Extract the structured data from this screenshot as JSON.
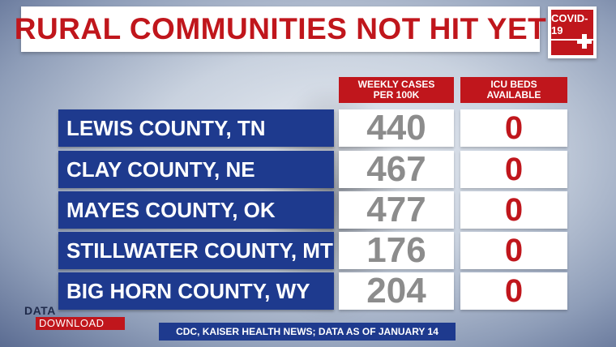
{
  "title": "RURAL COMMUNITIES NOT HIT YET",
  "badge": {
    "label": "COVID-19",
    "icon": "plus-icon"
  },
  "columns": {
    "cases_line1": "WEEKLY CASES",
    "cases_line2": "PER 100K",
    "icu_line1": "ICU BEDS",
    "icu_line2": "AVAILABLE"
  },
  "rows": [
    {
      "county": "LEWIS COUNTY, TN",
      "cases": "440",
      "icu": "0"
    },
    {
      "county": "CLAY COUNTY, NE",
      "cases": "467",
      "icu": "0"
    },
    {
      "county": "MAYES COUNTY, OK",
      "cases": "477",
      "icu": "0"
    },
    {
      "county": "STILLWATER COUNTY, MT",
      "cases": "176",
      "icu": "0"
    },
    {
      "county": "BIG HORN COUNTY, WY",
      "cases": "204",
      "icu": "0"
    }
  ],
  "brand": {
    "line1": "DATA",
    "line2": "DOWNLOAD"
  },
  "source": "CDC, KAISER HEALTH NEWS; DATA AS OF JANUARY 14",
  "colors": {
    "accent_red": "#c0161c",
    "navy": "#1e3a8e",
    "gray_numbers": "#8c8c8c"
  }
}
